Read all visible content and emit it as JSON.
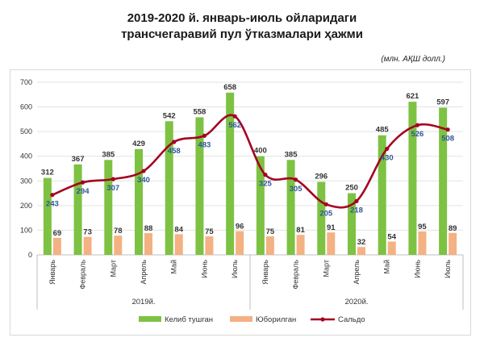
{
  "title_line1": "2019-2020 й. январь-июль ойларидаги",
  "title_line2": "трансчегаравий пул ўтказмалари ҳажми",
  "unit_label": "(млн. АҚШ долл.)",
  "chart_data": {
    "type": "bar",
    "categories": [
      "Январь",
      "Февраль",
      "Март",
      "Апрель",
      "Май",
      "Июнь",
      "Июль",
      "Январь",
      "Февраль",
      "Март",
      "Апрель",
      "Май",
      "Июнь",
      "Июль"
    ],
    "groups": [
      {
        "label": "2019й.",
        "start": 0,
        "end": 6
      },
      {
        "label": "2020й.",
        "start": 7,
        "end": 13
      }
    ],
    "series": [
      {
        "name": "Келиб тушган",
        "kind": "bar",
        "color": "#7dc242",
        "values": [
          312,
          367,
          385,
          429,
          542,
          558,
          658,
          400,
          385,
          296,
          250,
          485,
          621,
          597
        ]
      },
      {
        "name": "Юборилган",
        "kind": "bar",
        "color": "#f4b183",
        "values": [
          69,
          73,
          78,
          88,
          84,
          75,
          96,
          75,
          81,
          91,
          32,
          54,
          95,
          89
        ]
      },
      {
        "name": "Сальдо",
        "kind": "line",
        "color": "#a50021",
        "values": [
          243,
          294,
          307,
          340,
          458,
          483,
          562,
          325,
          305,
          205,
          218,
          430,
          526,
          508
        ]
      }
    ],
    "ylim": [
      0,
      700
    ],
    "yticks": [
      0,
      100,
      200,
      300,
      400,
      500,
      600,
      700
    ],
    "legend_position": "bottom"
  }
}
